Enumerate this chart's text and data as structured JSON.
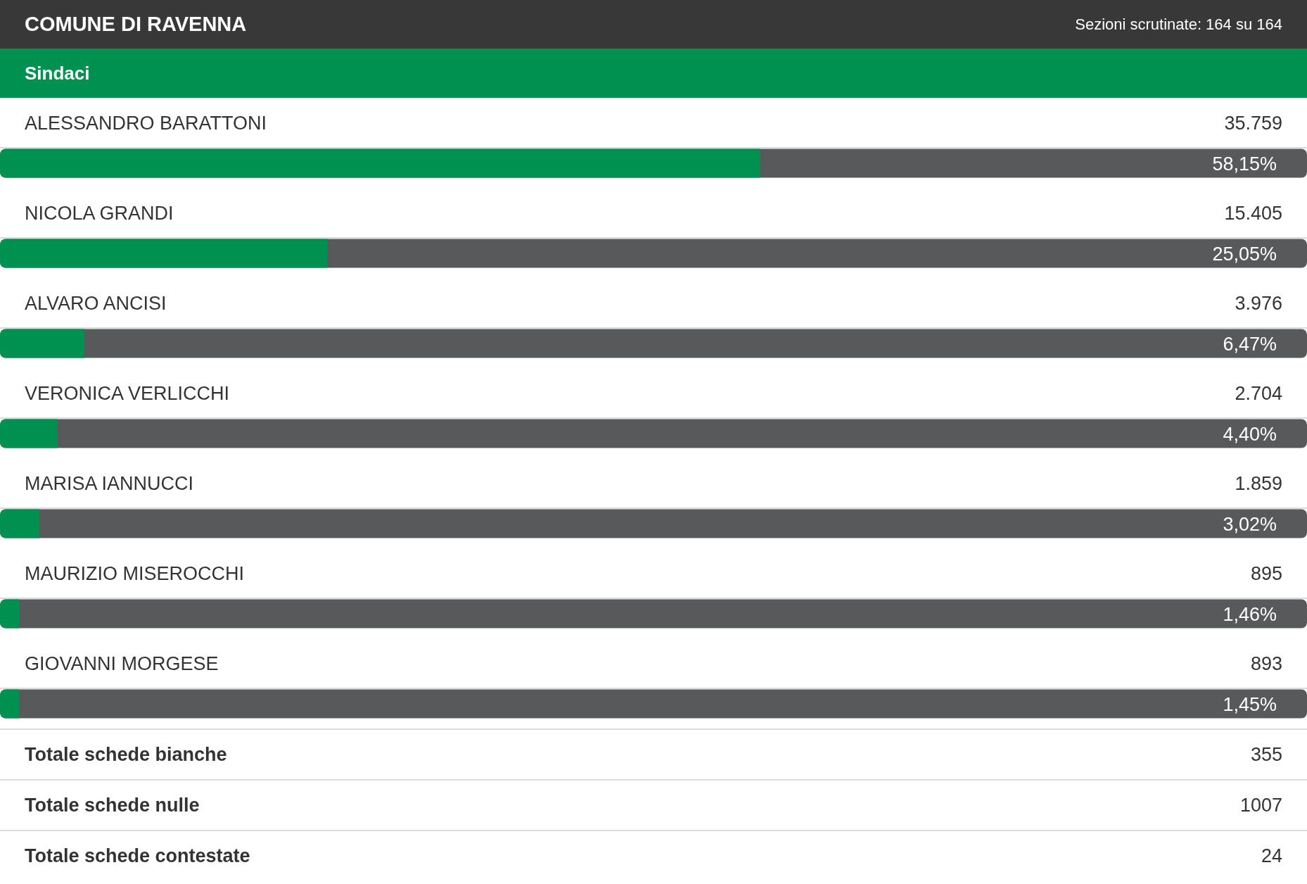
{
  "chart_data": {
    "type": "bar",
    "orientation": "horizontal",
    "title": "COMUNE DI RAVENNA",
    "subtitle": "Sezioni scrutinate: 164 su 164",
    "ylabel": "Sindaci",
    "categories": [
      "ALESSANDRO BARATTONI",
      "NICOLA GRANDI",
      "ALVARO ANCISI",
      "VERONICA VERLICCHI",
      "MARISA IANNUCCI",
      "MAURIZIO MISEROCCHI",
      "GIOVANNI MORGESE"
    ],
    "values": [
      58.15,
      25.05,
      6.47,
      4.4,
      3.02,
      1.46,
      1.45
    ],
    "value_labels": [
      "58,15%",
      "25,05%",
      "6,47%",
      "4,40%",
      "3,02%",
      "1,46%",
      "1,45%"
    ],
    "color": "#009151",
    "xlim": [
      0,
      100
    ],
    "tick_labels": "y",
    "annotations": [
      "35.759",
      "15.405",
      "3.976",
      "2.704",
      "1.859",
      "895",
      "893",
      "Totale schede bianche",
      "355",
      "Totale schede nulle",
      "1007",
      "Totale schede contestate",
      "24"
    ]
  }
}
